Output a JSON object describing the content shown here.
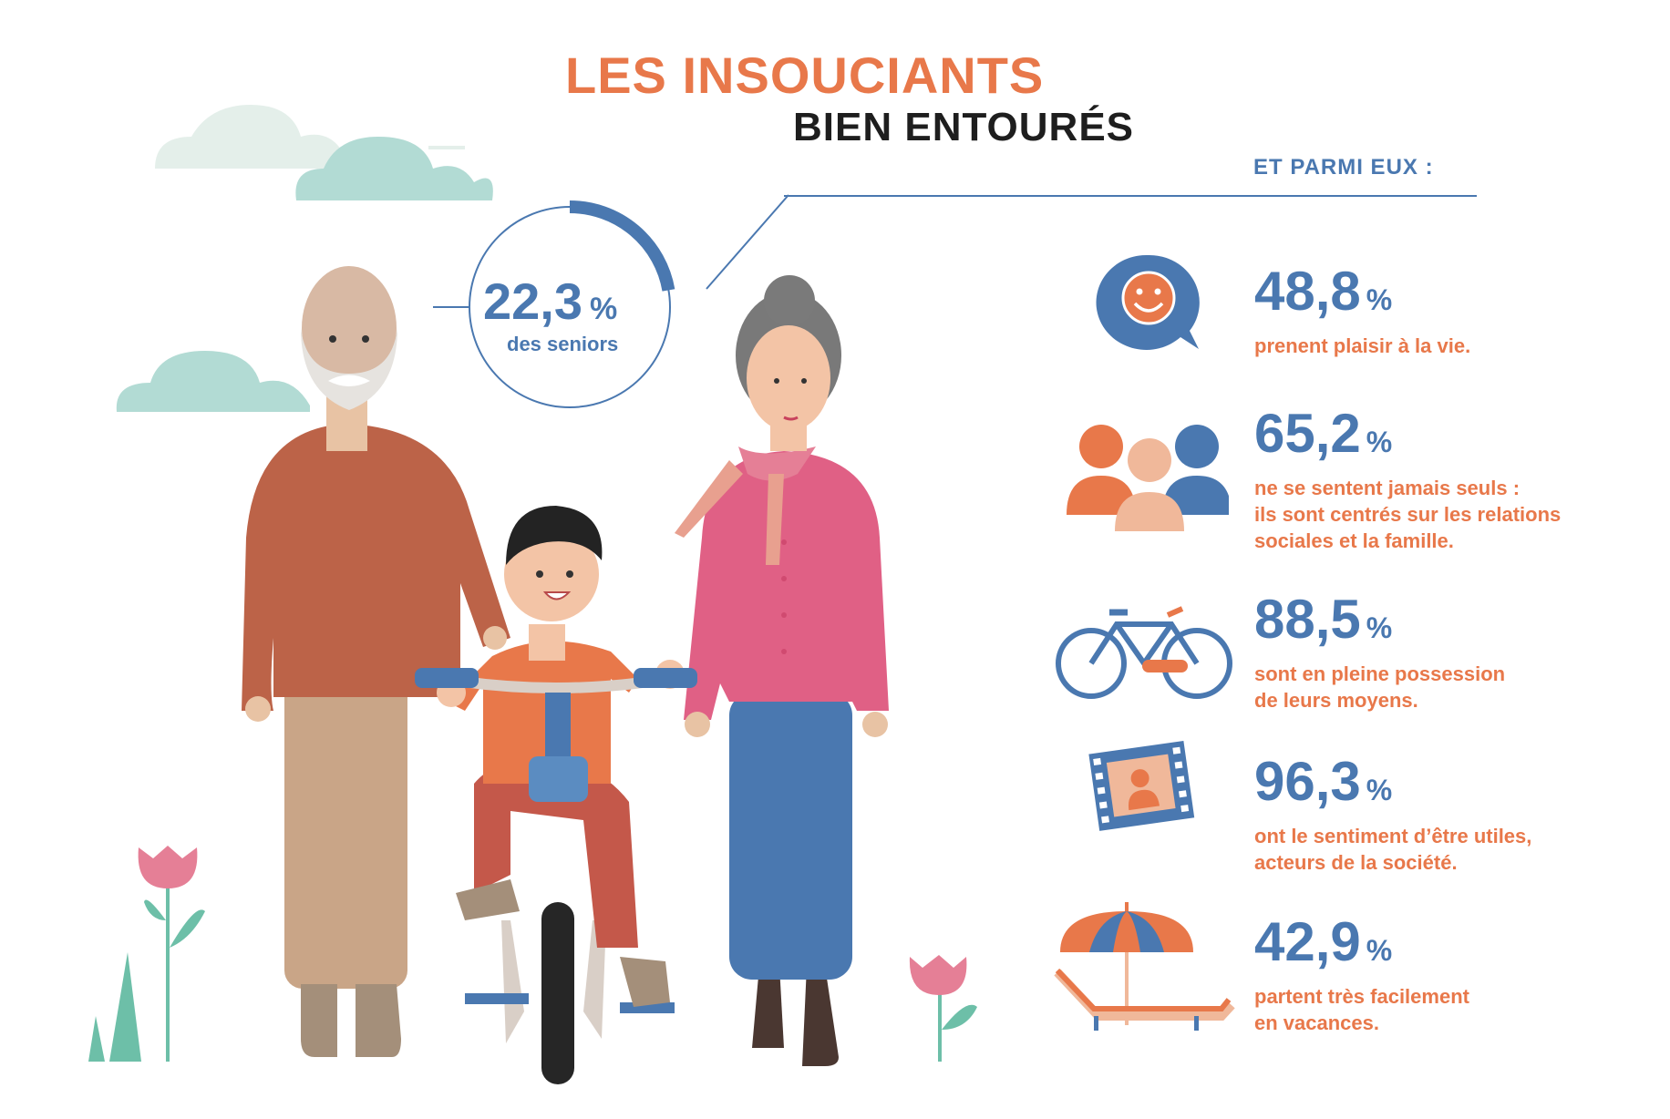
{
  "title": {
    "line1": "LES INSOUCIANTS",
    "line2": "BIEN ENTOURÉS"
  },
  "headline": {
    "value": "22,3",
    "unit": "%",
    "label": "des seniors",
    "fraction": 0.223
  },
  "subheading": "ET PARMI EUX :",
  "stats": [
    {
      "value": "48,8",
      "unit": "%",
      "lines": [
        "prenent plaisir à la vie."
      ],
      "icon": "smiley-speech-bubble-icon"
    },
    {
      "value": "65,2",
      "unit": "%",
      "lines": [
        "ne se sentent jamais seuls :",
        "ils sont centrés sur les relations",
        "sociales et la famille."
      ],
      "icon": "people-group-icon"
    },
    {
      "value": "88,5",
      "unit": "%",
      "lines": [
        "sont en pleine possession",
        "de leurs moyens."
      ],
      "icon": "bicycle-icon"
    },
    {
      "value": "96,3",
      "unit": "%",
      "lines": [
        "ont le sentiment d’être utiles,",
        "acteurs de la société."
      ],
      "icon": "film-strip-portrait-icon"
    },
    {
      "value": "42,9",
      "unit": "%",
      "lines": [
        "partent très facilement",
        "en vacances."
      ],
      "icon": "beach-umbrella-lounger-icon"
    }
  ],
  "colors": {
    "orange": "#e8784a",
    "blue": "#4a78b0",
    "dark": "#1e1e1e"
  }
}
